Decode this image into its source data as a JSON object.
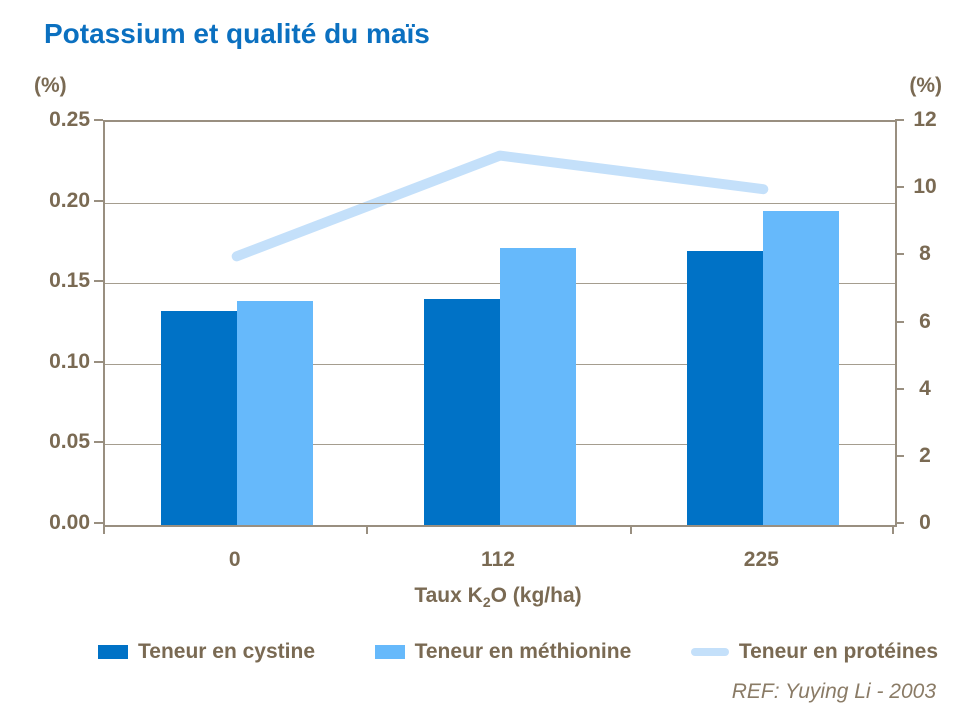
{
  "title": "Potassium et qualité du maïs",
  "reference": "REF: Yuying Li - 2003",
  "left_axis": {
    "unit": "(%)",
    "ticks": [
      "0.25",
      "0.20",
      "0.15",
      "0.10",
      "0.05",
      "0.00"
    ]
  },
  "right_axis": {
    "unit": "(%)",
    "ticks": [
      "12",
      "10",
      "8",
      "6",
      "4",
      "2",
      "0"
    ]
  },
  "x_axis": {
    "categories": [
      "0",
      "112",
      "225"
    ],
    "title_prefix": "Taux K",
    "title_sub": "2",
    "title_suffix": "O (kg/ha)"
  },
  "legend": {
    "items": [
      {
        "label": "Teneur en cystine",
        "type": "bar",
        "color": "#0072c6"
      },
      {
        "label": "Teneur en méthionine",
        "type": "bar",
        "color": "#66b9fb"
      },
      {
        "label": "Teneur en protéines",
        "type": "line",
        "color": "#c4e0fa"
      }
    ]
  },
  "colors": {
    "title_blue": "#0b70c0",
    "bar_dark": "#0072c6",
    "bar_light": "#66b9fb",
    "line_light": "#c4e0fa",
    "text_brown": "#7a6a53",
    "axis_line": "#998f80",
    "gridline": "#a59d8f",
    "ref_gray": "#8a7b66"
  },
  "chart_data": {
    "type": "combo",
    "title": "Potassium et qualité du maïs",
    "categories": [
      "0",
      "112",
      "225"
    ],
    "xlabel": "Taux K2O (kg/ha)",
    "left_ylabel": "(%)",
    "right_ylabel": "(%)",
    "left_ylim": [
      0,
      0.25
    ],
    "left_tick_step": 0.05,
    "right_ylim": [
      0,
      12
    ],
    "right_tick_step": 2,
    "grid": true,
    "legend_position": "bottom",
    "series": [
      {
        "name": "Teneur en cystine",
        "type": "bar",
        "axis": "left",
        "color": "#0072c6",
        "values": [
          0.133,
          0.14,
          0.17
        ]
      },
      {
        "name": "Teneur en méthionine",
        "type": "bar",
        "axis": "left",
        "color": "#66b9fb",
        "values": [
          0.139,
          0.172,
          0.195
        ]
      },
      {
        "name": "Teneur en protéines",
        "type": "line",
        "axis": "right",
        "color": "#c4e0fa",
        "values": [
          8,
          11,
          10
        ]
      }
    ]
  }
}
